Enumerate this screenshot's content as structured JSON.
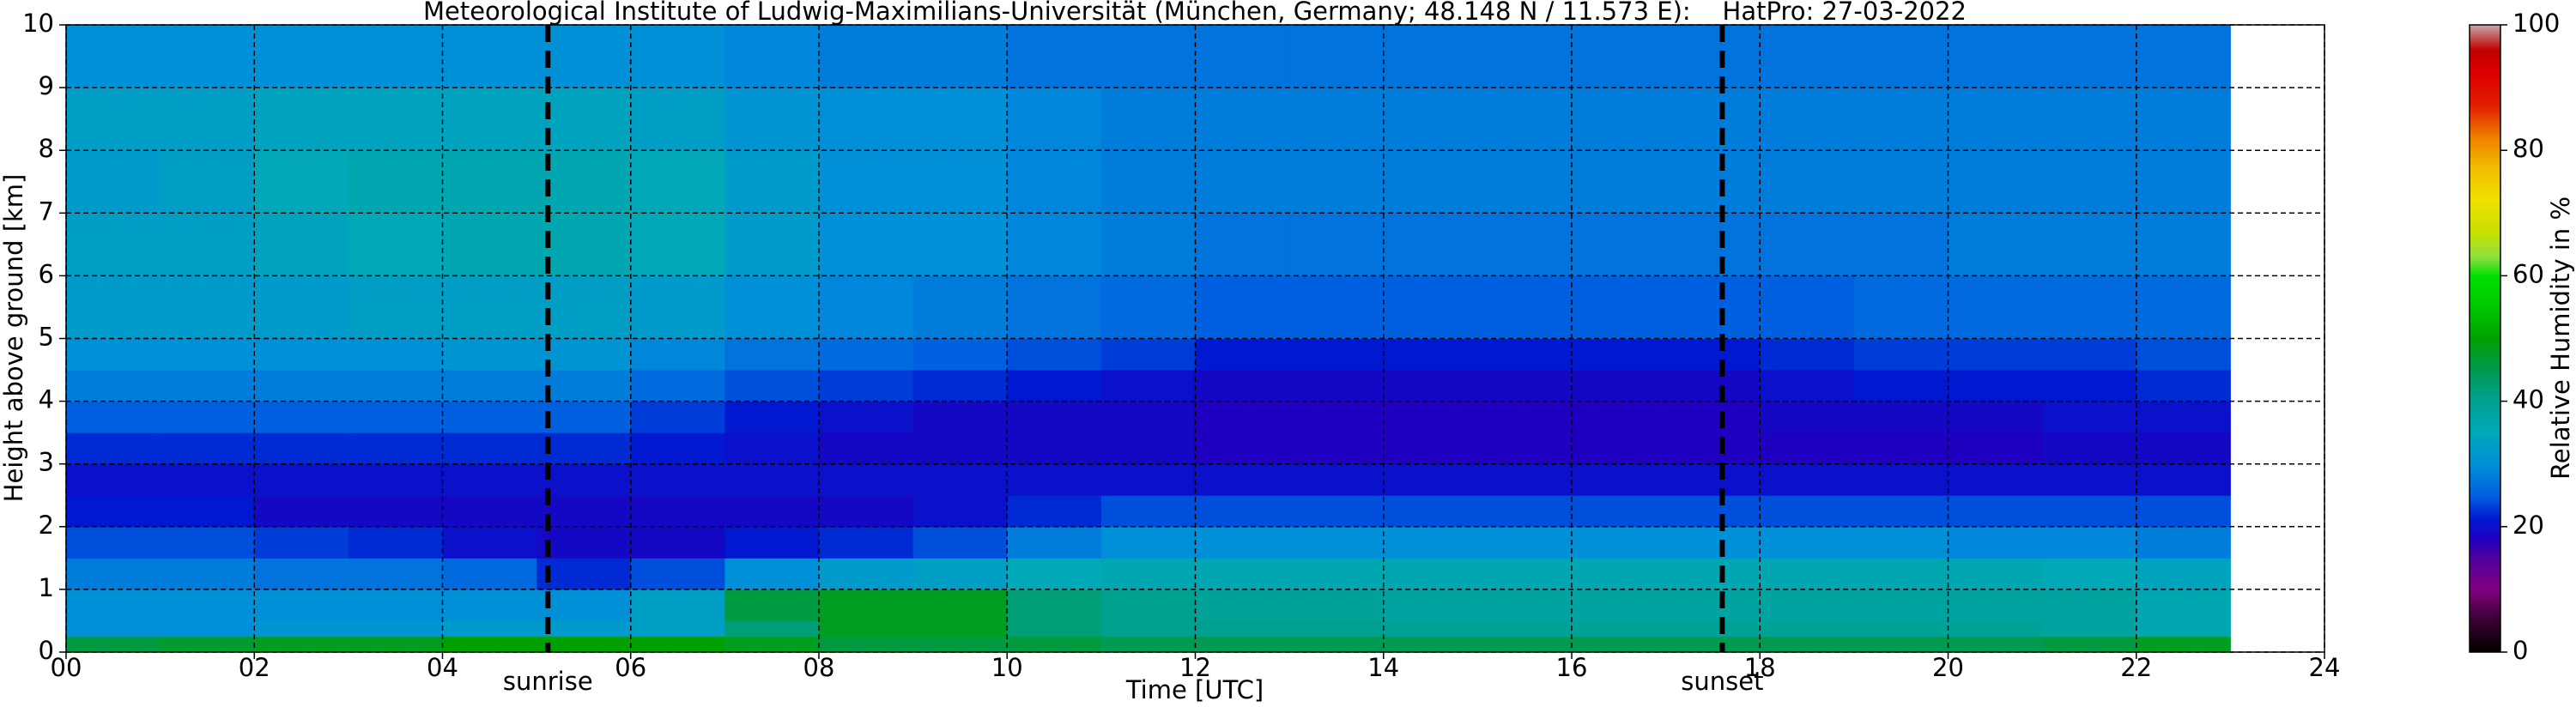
{
  "chart_data": {
    "type": "heatmap",
    "title": "Meteorological Institute of Ludwig-Maximilians-Universität (München, Germany; 48.148 N / 11.573 E):    HatPro: 27-03-2022",
    "x_label": "Time [UTC]",
    "y_label": "Height above ground [km]",
    "colorbar_label": "Relative Humidity in %",
    "xlim": [
      0,
      24
    ],
    "ylim": [
      0,
      10
    ],
    "clim": [
      0,
      100
    ],
    "xticks": [
      {
        "value": 0,
        "label": "00"
      },
      {
        "value": 2,
        "label": "02"
      },
      {
        "value": 4,
        "label": "04"
      },
      {
        "value": 6,
        "label": "06"
      },
      {
        "value": 8,
        "label": "08"
      },
      10,
      12,
      14,
      16,
      18,
      20,
      22,
      24
    ],
    "yticks": [
      0,
      1,
      2,
      3,
      4,
      5,
      6,
      7,
      8,
      9,
      10
    ],
    "cticks": [
      0,
      20,
      40,
      60,
      80,
      100
    ],
    "grid": true,
    "vlines": [
      {
        "x": 5.12,
        "label": "sunrise"
      },
      {
        "x": 17.6,
        "label": "sunset"
      }
    ],
    "colorscale": [
      [
        0,
        "#000000"
      ],
      [
        5,
        "#3a0030"
      ],
      [
        10,
        "#800080"
      ],
      [
        15,
        "#5000a0"
      ],
      [
        18,
        "#2000c0"
      ],
      [
        21,
        "#0018d0"
      ],
      [
        25,
        "#0060e0"
      ],
      [
        30,
        "#0090d8"
      ],
      [
        35,
        "#00a8b8"
      ],
      [
        40,
        "#00a090"
      ],
      [
        45,
        "#009a50"
      ],
      [
        50,
        "#00a000"
      ],
      [
        55,
        "#00c800"
      ],
      [
        60,
        "#00e000"
      ],
      [
        63,
        "#90e040"
      ],
      [
        67,
        "#c8e000"
      ],
      [
        72,
        "#f0e000"
      ],
      [
        77,
        "#f0c000"
      ],
      [
        82,
        "#f08000"
      ],
      [
        87,
        "#e02000"
      ],
      [
        92,
        "#e00000"
      ],
      [
        96,
        "#c00000"
      ],
      [
        100,
        "#c8a8a8"
      ]
    ],
    "x_edges": [
      0,
      1,
      2,
      3,
      4,
      5,
      6,
      7,
      8,
      9,
      10,
      11,
      12,
      13,
      14,
      15,
      16,
      17,
      18,
      19,
      20,
      21,
      22,
      23
    ],
    "y_edges": [
      0,
      0.25,
      0.5,
      1,
      1.5,
      2,
      2.5,
      3,
      3.5,
      4,
      4.5,
      5,
      6,
      7,
      8,
      9,
      10
    ],
    "values": [
      [
        46,
        47,
        48,
        48,
        50,
        50,
        50,
        48,
        46,
        46,
        46,
        45,
        45,
        45,
        45,
        45,
        45,
        45,
        45,
        45,
        45,
        46,
        48
      ],
      [
        30,
        30,
        31,
        31,
        32,
        32,
        33,
        42,
        48,
        48,
        42,
        40,
        40,
        40,
        39,
        39,
        39,
        39,
        39,
        39,
        39,
        38,
        36
      ],
      [
        30,
        30,
        30,
        30,
        30,
        30,
        33,
        46,
        48,
        48,
        42,
        40,
        39,
        39,
        38,
        38,
        38,
        38,
        38,
        38,
        38,
        38,
        36
      ],
      [
        28,
        28,
        27,
        27,
        26,
        22,
        24,
        30,
        32,
        33,
        35,
        36,
        36,
        36,
        36,
        36,
        36,
        36,
        36,
        36,
        36,
        35,
        34
      ],
      [
        24,
        24,
        23,
        22,
        20,
        19,
        19,
        21,
        22,
        24,
        28,
        30,
        30,
        30,
        30,
        30,
        30,
        30,
        30,
        30,
        29,
        29,
        28
      ],
      [
        21,
        21,
        19,
        19,
        19,
        19,
        19,
        19,
        19,
        20,
        22,
        24,
        24,
        24,
        24,
        24,
        24,
        24,
        24,
        24,
        24,
        24,
        24
      ],
      [
        20,
        20,
        20,
        20,
        20,
        20,
        20,
        20,
        20,
        20,
        20,
        20,
        20,
        20,
        20,
        20,
        20,
        20,
        20,
        20,
        20,
        20,
        20
      ],
      [
        22,
        22,
        22,
        22,
        22,
        22,
        21,
        20,
        19,
        19,
        19,
        19,
        18,
        18,
        18,
        18,
        18,
        18,
        18,
        18,
        18,
        19,
        19
      ],
      [
        25,
        25,
        25,
        25,
        25,
        25,
        23,
        21,
        20,
        19,
        19,
        19,
        18,
        18,
        18,
        18,
        18,
        18,
        19,
        19,
        19,
        20,
        20
      ],
      [
        28,
        28,
        28,
        28,
        28,
        28,
        26,
        24,
        23,
        22,
        21,
        20,
        19,
        19,
        19,
        19,
        19,
        19,
        20,
        21,
        21,
        21,
        22
      ],
      [
        30,
        30,
        30,
        30,
        31,
        31,
        29,
        27,
        26,
        25,
        24,
        23,
        21,
        21,
        21,
        21,
        21,
        21,
        22,
        23,
        23,
        23,
        24
      ],
      [
        32,
        32,
        32,
        33,
        33,
        33,
        32,
        30,
        29,
        28,
        27,
        26,
        25,
        25,
        25,
        25,
        25,
        25,
        25,
        26,
        26,
        26,
        26
      ],
      [
        33,
        33,
        34,
        35,
        36,
        36,
        35,
        32,
        30,
        30,
        29,
        28,
        27,
        27,
        27,
        27,
        27,
        27,
        27,
        27,
        28,
        28,
        28
      ],
      [
        32,
        33,
        35,
        36,
        36,
        36,
        35,
        32,
        30,
        30,
        29,
        28,
        28,
        28,
        28,
        28,
        28,
        28,
        28,
        28,
        28,
        28,
        28
      ],
      [
        33,
        33,
        34,
        34,
        34,
        34,
        33,
        31,
        30,
        30,
        29,
        28,
        28,
        28,
        28,
        28,
        28,
        28,
        28,
        28,
        28,
        28,
        28
      ],
      [
        30,
        30,
        30,
        30,
        30,
        30,
        30,
        29,
        28,
        28,
        27,
        27,
        27,
        27,
        27,
        27,
        27,
        27,
        27,
        27,
        27,
        27,
        27
      ]
    ]
  }
}
